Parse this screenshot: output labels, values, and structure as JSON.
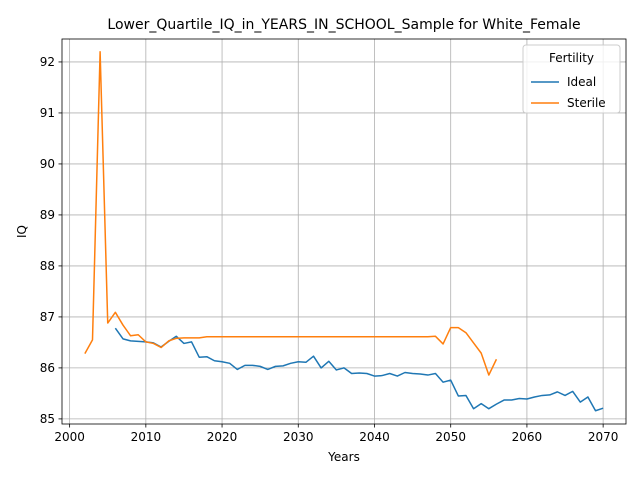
{
  "chart_data": {
    "type": "line",
    "title": "Lower_Quartile_IQ_in_YEARS_IN_SCHOOL_Sample for White_Female",
    "xlabel": "Years",
    "ylabel": "IQ",
    "xlim": [
      1999,
      2073
    ],
    "ylim": [
      84.9,
      92.45
    ],
    "xticks": [
      2000,
      2010,
      2020,
      2030,
      2040,
      2050,
      2060,
      2070
    ],
    "yticks": [
      85,
      86,
      87,
      88,
      89,
      90,
      91,
      92
    ],
    "grid": true,
    "legend": {
      "title": "Fertility",
      "placement": "top-right"
    },
    "series": [
      {
        "name": "Ideal",
        "color": "#1f77b4",
        "x": [
          2006,
          2007,
          2008,
          2009,
          2010,
          2011,
          2012,
          2013,
          2014,
          2015,
          2016,
          2017,
          2018,
          2019,
          2020,
          2021,
          2022,
          2023,
          2024,
          2025,
          2026,
          2027,
          2028,
          2029,
          2030,
          2031,
          2032,
          2033,
          2034,
          2035,
          2036,
          2037,
          2038,
          2039,
          2040,
          2041,
          2042,
          2043,
          2044,
          2045,
          2046,
          2047,
          2048,
          2049,
          2050,
          2051,
          2052,
          2053,
          2054,
          2055,
          2056,
          2057,
          2058,
          2059,
          2060,
          2061,
          2062,
          2063,
          2064,
          2065,
          2066,
          2067,
          2068,
          2069,
          2070
        ],
        "y": [
          86.78,
          86.57,
          86.53,
          86.52,
          86.51,
          86.49,
          86.41,
          86.52,
          86.62,
          86.48,
          86.51,
          86.21,
          86.22,
          86.14,
          86.12,
          86.09,
          85.97,
          86.05,
          86.05,
          86.03,
          85.97,
          86.03,
          86.04,
          86.09,
          86.12,
          86.11,
          86.23,
          86.0,
          86.13,
          85.96,
          86.0,
          85.89,
          85.9,
          85.89,
          85.84,
          85.85,
          85.89,
          85.84,
          85.91,
          85.89,
          85.88,
          85.86,
          85.89,
          85.72,
          85.76,
          85.45,
          85.46,
          85.2,
          85.3,
          85.2,
          85.29,
          85.37,
          85.37,
          85.4,
          85.39,
          85.43,
          85.46,
          85.47,
          85.53,
          85.46,
          85.54,
          85.33,
          85.43,
          85.16,
          85.21
        ]
      },
      {
        "name": "Sterile",
        "color": "#ff7f0e",
        "x": [
          2002,
          2003,
          2004,
          2005,
          2006,
          2007,
          2008,
          2009,
          2010,
          2011,
          2012,
          2013,
          2014,
          2015,
          2016,
          2017,
          2018,
          2019,
          2020,
          2021,
          2022,
          2023,
          2024,
          2025,
          2026,
          2027,
          2028,
          2029,
          2030,
          2031,
          2032,
          2033,
          2034,
          2035,
          2036,
          2037,
          2038,
          2039,
          2040,
          2041,
          2042,
          2043,
          2044,
          2045,
          2046,
          2047,
          2048,
          2049,
          2050,
          2051,
          2052,
          2053,
          2054,
          2055,
          2056
        ],
        "y": [
          86.28,
          86.55,
          92.2,
          86.88,
          87.09,
          86.84,
          86.63,
          86.65,
          86.51,
          86.48,
          86.4,
          86.53,
          86.58,
          86.59,
          86.59,
          86.59,
          86.61,
          86.61,
          86.61,
          86.61,
          86.61,
          86.61,
          86.61,
          86.61,
          86.61,
          86.61,
          86.61,
          86.61,
          86.61,
          86.61,
          86.61,
          86.61,
          86.61,
          86.61,
          86.61,
          86.61,
          86.61,
          86.61,
          86.61,
          86.61,
          86.61,
          86.61,
          86.61,
          86.61,
          86.61,
          86.61,
          86.62,
          86.47,
          86.79,
          86.79,
          86.69,
          86.49,
          86.29,
          85.86,
          86.17
        ]
      }
    ]
  }
}
